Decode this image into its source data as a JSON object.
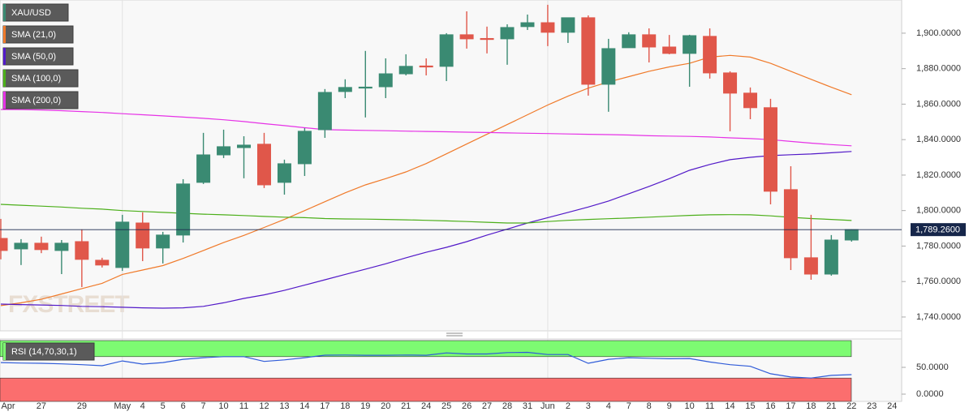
{
  "chart_data": [
    {
      "type": "candlestick",
      "categories": [
        "Apr",
        null,
        "27",
        null,
        "29",
        null,
        "May",
        "4",
        "5",
        "6",
        "7",
        "10",
        "11",
        "12",
        "13",
        "14",
        "17",
        "18",
        "19",
        "20",
        "21",
        "24",
        "25",
        "26",
        "27",
        "28",
        "31",
        "Jun",
        "2",
        "3",
        "4",
        "7",
        "8",
        "9",
        "10",
        "11",
        "14",
        "15",
        "16",
        "17",
        "18",
        "21",
        "22",
        "23",
        "24"
      ],
      "ylim": [
        1732.2,
        1918.7
      ],
      "yticks": [
        {
          "value": 1740,
          "label": "1,740.0000"
        },
        {
          "value": 1760,
          "label": "1,760.0000"
        },
        {
          "value": 1780,
          "label": "1,780.0000"
        },
        {
          "value": 1800,
          "label": "1,800.0000"
        },
        {
          "value": 1820,
          "label": "1,820.0000"
        },
        {
          "value": 1840,
          "label": "1,840.0000"
        },
        {
          "value": 1860,
          "label": "1,860.0000"
        },
        {
          "value": 1880,
          "label": "1,880.0000"
        },
        {
          "value": 1900,
          "label": "1,900.0000"
        }
      ],
      "price_line": {
        "value": 1789.26,
        "label": "1,789.2600"
      },
      "watermark": "FXSTREET",
      "series": [
        {
          "name": "XAU/USD",
          "type": "candlestick",
          "up_color": "#3a8a72",
          "down_color": "#e0574a",
          "open": [
            1784.3,
            1778.4,
            1781.6,
            1777.5,
            1782.5,
            1772,
            1767.9,
            1793,
            1778.9,
            1786.2,
            1815.9,
            1831.4,
            1835.5,
            1837.4,
            1815.9,
            1826.4,
            1845.6,
            1867.1,
            1869.2,
            1869.8,
            1877.1,
            1881.5,
            1881.3,
            1899.1,
            1897,
            1896.8,
            1903.7,
            1905.9,
            1900.5,
            1908.7,
            1871.2,
            1891.8,
            1899.1,
            1892.2,
            1888.6,
            1898.2,
            1877.6,
            1866.2,
            1858,
            1811.8,
            1773.4,
            1764.2,
            1783.4,
            null,
            null
          ],
          "high": [
            1795.3,
            1783.9,
            1785.3,
            1783.4,
            1789.4,
            1773.4,
            1797.6,
            1799,
            1788,
            1817.7,
            1843.8,
            1845.6,
            1841.9,
            1843.8,
            1828.7,
            1846.5,
            1868.5,
            1874,
            1890,
            1885.8,
            1888.1,
            1885.8,
            1900,
            1912.3,
            1903.7,
            1905,
            1910.5,
            1916,
            1908.7,
            1910,
            1896.8,
            1900.5,
            1902.7,
            1899,
            1899.1,
            1902.7,
            1878.5,
            1869.4,
            1863,
            1825,
            1797.6,
            1786.2,
            1789.4,
            null,
            null
          ],
          "low": [
            1772.5,
            1769.3,
            1776,
            1764.2,
            1756.9,
            1767.9,
            1766,
            1771.5,
            1770.2,
            1782,
            1815,
            1829.6,
            1818.2,
            1812.7,
            1809,
            1819.5,
            1841,
            1863.4,
            1852.5,
            1863.4,
            1876.2,
            1876.2,
            1873,
            1891.3,
            1888.6,
            1882.2,
            1901.8,
            1892.7,
            1894.5,
            1864.8,
            1855.7,
            1891.8,
            1883.5,
            1888.1,
            1869.8,
            1874.4,
            1844.7,
            1851.5,
            1803.5,
            1766.5,
            1761,
            1763.3,
            1782.5,
            null,
            null
          ],
          "close": [
            1777.5,
            1781.6,
            1778,
            1781.6,
            1772.5,
            1769.3,
            1793.5,
            1778.9,
            1786.2,
            1815,
            1831.4,
            1836,
            1836.9,
            1814.5,
            1826.4,
            1844.7,
            1866.6,
            1869.4,
            1869.6,
            1877.1,
            1881.3,
            1881.3,
            1899.1,
            1896.8,
            1896.8,
            1903.2,
            1905.9,
            1900.5,
            1908.7,
            1871.2,
            1891.3,
            1899.1,
            1892.2,
            1888.6,
            1898.6,
            1877.6,
            1866.2,
            1858,
            1810.9,
            1773.4,
            1764.2,
            1783.4,
            1789.26,
            null,
            null
          ]
        },
        {
          "name": "SMA (21,0)",
          "type": "line",
          "color": "#f07a2a",
          "values": [
            1746.4,
            1748,
            1750,
            1753,
            1756,
            1759,
            1764,
            1766.5,
            1769,
            1773,
            1777.5,
            1782,
            1786,
            1790.5,
            1795,
            1800,
            1805,
            1810,
            1814.5,
            1818,
            1821.8,
            1826.5,
            1832,
            1837.5,
            1843,
            1848.5,
            1854,
            1859.5,
            1864.5,
            1869,
            1872.5,
            1875.5,
            1878.5,
            1881,
            1883,
            1886.5,
            1887.5,
            1886.5,
            1883,
            1878.5,
            1874,
            1869.5,
            1865.3,
            null,
            null
          ]
        },
        {
          "name": "SMA (50,0)",
          "type": "line",
          "color": "#5219c8",
          "values": [
            1747.3,
            1747,
            1746.8,
            1746.5,
            1746,
            1745.8,
            1745.5,
            1745.2,
            1745,
            1745.2,
            1746,
            1748,
            1750.5,
            1752.5,
            1755,
            1758,
            1761,
            1764,
            1767,
            1770,
            1773.4,
            1776.5,
            1779.3,
            1782.5,
            1786.2,
            1789.5,
            1793,
            1796,
            1799,
            1802,
            1805.4,
            1809.5,
            1813.6,
            1818,
            1822.7,
            1826,
            1828.7,
            1830,
            1831,
            1831.5,
            1831.9,
            1832.6,
            1833.3,
            null,
            null
          ]
        },
        {
          "name": "SMA (100,0)",
          "type": "line",
          "color": "#4caf1a",
          "values": [
            1803.5,
            1803,
            1802.5,
            1802,
            1801.3,
            1800.8,
            1800,
            1799.5,
            1799,
            1798.5,
            1798,
            1797.6,
            1797.2,
            1796.7,
            1796.3,
            1796,
            1795.5,
            1795.3,
            1795.2,
            1795,
            1794.8,
            1794.5,
            1794.2,
            1793.8,
            1793.4,
            1793,
            1793,
            1793.8,
            1794.5,
            1795,
            1795.4,
            1795.8,
            1796.3,
            1796.8,
            1797.3,
            1797.6,
            1797.7,
            1797.6,
            1797,
            1796.2,
            1795.5,
            1795,
            1794.4,
            null,
            null
          ]
        },
        {
          "name": "SMA (200,0)",
          "type": "line",
          "color": "#e632e6",
          "values": [
            1857,
            1856.9,
            1856.7,
            1856.3,
            1855.8,
            1855.3,
            1854.6,
            1854,
            1853.4,
            1852.7,
            1852,
            1851.2,
            1850.2,
            1849,
            1847.9,
            1846.7,
            1845.6,
            1845.4,
            1845.2,
            1845,
            1844.8,
            1844.6,
            1844.4,
            1844.2,
            1844,
            1843.8,
            1843.6,
            1843.4,
            1843.2,
            1843,
            1842.8,
            1842.6,
            1842.2,
            1842,
            1841.8,
            1841.5,
            1841,
            1840.6,
            1840,
            1839,
            1838,
            1837.2,
            1836.5,
            null,
            null
          ]
        }
      ]
    },
    {
      "type": "line",
      "ylim": [
        -13.6,
        103
      ],
      "yticks": [
        {
          "value": 0,
          "label": "0.0000"
        },
        {
          "value": 50,
          "label": "50.0000"
        }
      ],
      "overbought": 70,
      "oversold": 30,
      "overbought_color": "#7dfb72",
      "oversold_color": "#fb6e6e",
      "series": [
        {
          "name": "RSI (14,70,30,1)",
          "color": "#2f5bd8",
          "values": [
            59,
            58,
            57.5,
            56.5,
            55,
            53,
            62,
            56,
            59,
            65,
            68,
            70,
            70,
            61,
            64,
            68,
            72.7,
            73,
            72.5,
            72.5,
            73,
            72.5,
            77,
            75,
            75,
            77.5,
            78,
            74,
            74,
            57.5,
            65,
            68,
            67,
            66,
            66.5,
            60,
            55,
            52,
            38,
            32,
            30,
            35,
            36.4,
            null,
            null
          ]
        }
      ]
    }
  ]
}
